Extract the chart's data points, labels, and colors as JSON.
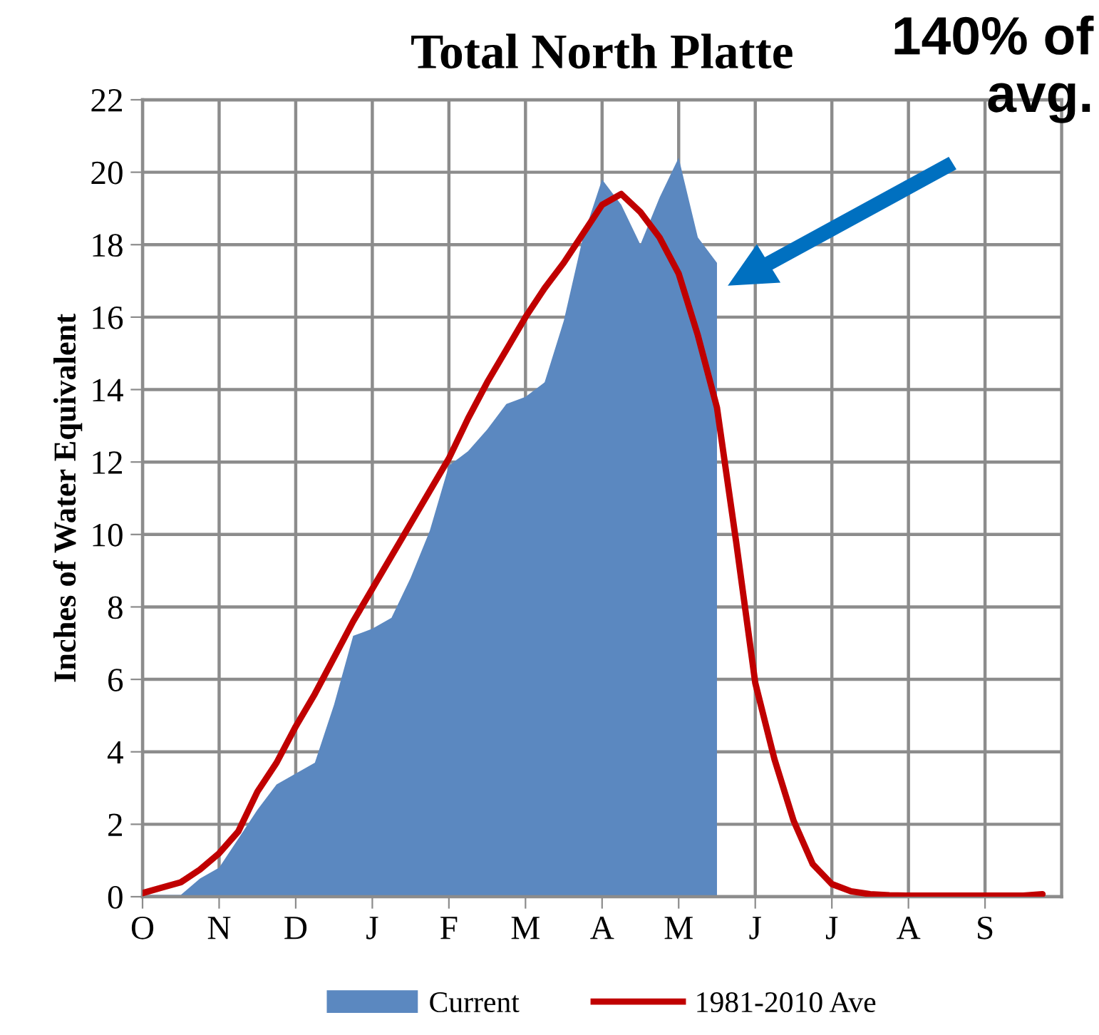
{
  "chart_data": {
    "type": "area",
    "title": "Total North Platte",
    "ylabel": "Inches of Water Equivalent",
    "categories": [
      "O",
      null,
      null,
      null,
      "N",
      null,
      null,
      null,
      "D",
      null,
      null,
      null,
      "J",
      null,
      null,
      null,
      "F",
      null,
      null,
      null,
      "M",
      null,
      null,
      null,
      "A",
      null,
      null,
      null,
      "M",
      null,
      null,
      null,
      "J",
      null,
      null,
      null,
      "J",
      null,
      null,
      null,
      "A",
      null,
      null,
      null,
      "S",
      null,
      null,
      null
    ],
    "ylim": [
      0,
      22
    ],
    "yticks": [
      0,
      2,
      4,
      6,
      8,
      10,
      12,
      14,
      16,
      18,
      20,
      22
    ],
    "grid": true,
    "legend": "bottom",
    "series": [
      {
        "name": "Current",
        "color": "#5b88c0",
        "values": [
          0.05,
          0.05,
          0.05,
          0.5,
          0.8,
          1.6,
          2.4,
          3.1,
          3.4,
          3.7,
          5.3,
          7.2,
          7.4,
          7.7,
          8.8,
          10.1,
          11.9,
          12.3,
          12.9,
          13.6,
          13.8,
          14.2,
          15.9,
          18.2,
          19.8,
          19.1,
          18.0,
          19.3,
          20.4,
          18.2,
          17.5,
          null,
          null,
          null,
          null,
          null,
          null,
          null,
          null,
          null,
          null,
          null,
          null,
          null,
          null,
          null,
          null,
          null
        ]
      },
      {
        "name": "1981-2010 Ave",
        "type": "line",
        "color": "#c00000",
        "values": [
          0.1,
          0.25,
          0.4,
          0.75,
          1.2,
          1.8,
          2.9,
          3.7,
          4.7,
          5.6,
          6.6,
          7.6,
          8.5,
          9.4,
          10.3,
          11.2,
          12.1,
          13.2,
          14.2,
          15.1,
          16.0,
          16.8,
          17.5,
          18.3,
          19.1,
          19.4,
          18.9,
          18.2,
          17.2,
          15.5,
          13.5,
          9.8,
          5.9,
          3.8,
          2.1,
          0.9,
          0.35,
          0.15,
          0.07,
          0.04,
          0.03,
          0.03,
          0.03,
          0.03,
          0.03,
          0.03,
          0.03,
          0.07
        ]
      }
    ],
    "annotations": [
      "140% of\navg."
    ]
  }
}
